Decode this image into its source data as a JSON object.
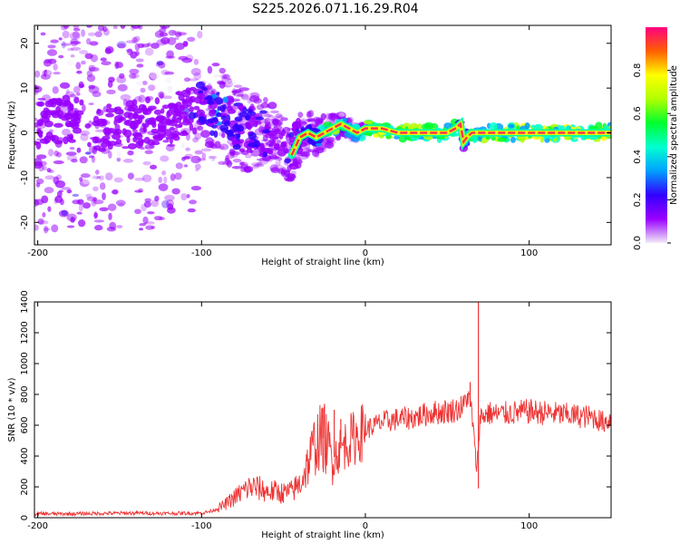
{
  "title": "S225.2026.071.16.29.R04",
  "chart_data": [
    {
      "type": "heatmap",
      "xlabel": "Height of straight line (km)",
      "ylabel": "Frequency (Hz)",
      "xlim": [
        -202,
        150
      ],
      "ylim": [
        -25,
        24
      ],
      "xticks": [
        "-200",
        "-100",
        "0",
        "100"
      ],
      "yticks": [
        "20",
        "10",
        "0",
        "-10",
        "-20"
      ],
      "colorbar": {
        "label": "Normalized spectral amplitude",
        "range": [
          0,
          1
        ],
        "ticks": [
          "0.0",
          "0.2",
          "0.4",
          "0.6",
          "0.8"
        ],
        "colors": [
          "#f2ecf8",
          "#9900ff",
          "#3300ff",
          "#00a0ff",
          "#00ffd0",
          "#00ff30",
          "#b0ff00",
          "#ffff00",
          "#ff6000",
          "#ff0080"
        ]
      },
      "ridge": {
        "description": "dominant frequency track",
        "x": [
          -200,
          -180,
          -160,
          -140,
          -120,
          -100,
          -90,
          -80,
          -70,
          -60,
          -50,
          -45,
          -40,
          -35,
          -30,
          -25,
          -20,
          -15,
          -10,
          -5,
          0,
          10,
          20,
          30,
          40,
          50,
          55,
          58,
          60,
          62,
          65,
          70,
          80,
          100,
          120,
          150
        ],
        "y": [
          2,
          3,
          1,
          2,
          3,
          6,
          4,
          2,
          0,
          0,
          -3,
          -5,
          -1,
          0,
          -1,
          0,
          1,
          2,
          1,
          0,
          1,
          1,
          0,
          0,
          0,
          0,
          1,
          2,
          -2,
          -1,
          0,
          0,
          0,
          0,
          0,
          0
        ],
        "amplitude": [
          0.15,
          0.18,
          0.2,
          0.15,
          0.18,
          0.22,
          0.4,
          0.3,
          0.28,
          0.25,
          0.2,
          0.22,
          0.25,
          0.3,
          0.45,
          0.6,
          0.8,
          0.75,
          0.7,
          0.75,
          0.8,
          0.9,
          0.95,
          0.92,
          0.85,
          0.8,
          0.6,
          0.4,
          0.3,
          0.5,
          0.7,
          0.8,
          0.85,
          0.9,
          0.9,
          0.9
        ]
      }
    },
    {
      "type": "line",
      "xlabel": "Height of straight line (km)",
      "ylabel": "SNR (10 * v/v)",
      "xlim": [
        -202,
        150
      ],
      "ylim": [
        0,
        1400
      ],
      "xticks": [
        "-200",
        "-100",
        "0",
        "100"
      ],
      "yticks": [
        "0",
        "200",
        "400",
        "600",
        "800",
        "1000",
        "1200",
        "1400"
      ],
      "series": [
        {
          "name": "SNR",
          "color": "#ee3333",
          "x": [
            -202,
            -180,
            -160,
            -140,
            -120,
            -100,
            -95,
            -90,
            -85,
            -80,
            -75,
            -70,
            -65,
            -60,
            -55,
            -50,
            -45,
            -40,
            -35,
            -30,
            -25,
            -20,
            -15,
            -10,
            -5,
            0,
            10,
            20,
            30,
            40,
            50,
            55,
            60,
            62,
            65,
            68,
            70,
            75,
            80,
            90,
            100,
            110,
            120,
            130,
            140,
            145,
            150
          ],
          "y": [
            25,
            25,
            28,
            30,
            28,
            30,
            40,
            60,
            90,
            130,
            170,
            200,
            190,
            170,
            170,
            160,
            170,
            220,
            350,
            500,
            520,
            380,
            450,
            500,
            530,
            570,
            620,
            640,
            650,
            680,
            690,
            700,
            720,
            800,
            690,
            300,
            650,
            680,
            670,
            680,
            690,
            680,
            670,
            660,
            650,
            620,
            640
          ]
        }
      ],
      "spikes": [
        {
          "x": -26,
          "y": 710
        },
        {
          "x": -19,
          "y": 700
        },
        {
          "x": -15,
          "y": 640
        },
        {
          "x": 64,
          "y": 880
        },
        {
          "x": 69,
          "y": 1400
        },
        {
          "x": 69,
          "y": 190
        }
      ]
    }
  ]
}
